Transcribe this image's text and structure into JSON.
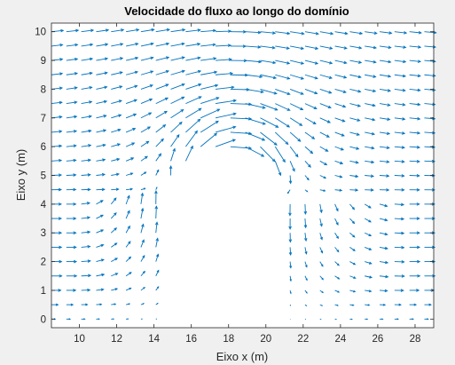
{
  "chart_data": {
    "type": "quiver",
    "title": "Velocidade do fluxo ao longo do domínio",
    "xlabel": "Eixo x (m)",
    "ylabel": "Eixo y (m)",
    "xlim": [
      8.5,
      29
    ],
    "ylim": [
      -0.3,
      10.3
    ],
    "xticks": [
      "10",
      "12",
      "14",
      "16",
      "18",
      "20",
      "22",
      "24",
      "26",
      "28"
    ],
    "yticks": [
      "0",
      "1",
      "2",
      "3",
      "4",
      "5",
      "6",
      "7",
      "8",
      "9",
      "10"
    ],
    "grid": false,
    "arrow_color": "#0072BD",
    "grid_x": {
      "start": 8.5,
      "step": 0.8,
      "count": 26
    },
    "grid_y": {
      "start": 0,
      "step": 0.5,
      "count": 21
    },
    "obstacle": {
      "description_values": {
        "left_x": 14.7,
        "right_x": 21.2,
        "straight_top_y": 4.2,
        "apex_y": 6.0,
        "center_x": 17.95
      }
    },
    "free_stream_u": 1.0
  }
}
